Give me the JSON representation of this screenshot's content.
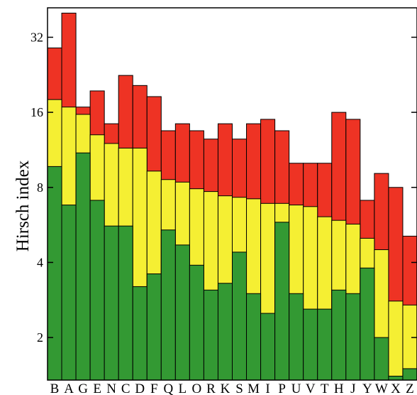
{
  "chart_data": {
    "type": "bar",
    "stacked": true,
    "ylabel": "Hirsch index",
    "xlabel": "",
    "yscale": "log2",
    "ylim": [
      1.35,
      42
    ],
    "yticks": [
      2,
      4,
      8,
      16,
      32
    ],
    "grid": false,
    "categories": [
      "B",
      "A",
      "G",
      "E",
      "N",
      "C",
      "D",
      "F",
      "Q",
      "L",
      "O",
      "R",
      "K",
      "S",
      "M",
      "I",
      "P",
      "U",
      "V",
      "T",
      "H",
      "J",
      "Y",
      "W",
      "X",
      "Z"
    ],
    "series": [
      {
        "color": "#339933",
        "values": [
          9.7,
          6.8,
          11,
          7.1,
          5.6,
          5.6,
          3.2,
          3.6,
          5.4,
          4.7,
          3.9,
          3.1,
          3.3,
          4.4,
          3.0,
          2.5,
          5.8,
          3.0,
          2.6,
          2.6,
          3.1,
          3.0,
          3.8,
          2.0,
          1.4,
          1.5
        ]
      },
      {
        "color": "#f5ef33",
        "values": [
          18,
          16.8,
          15.7,
          13,
          12,
          11.5,
          11.5,
          9.3,
          8.6,
          8.4,
          7.9,
          7.7,
          7.4,
          7.3,
          7.2,
          6.9,
          6.9,
          6.8,
          6.7,
          6.1,
          5.9,
          5.7,
          5.0,
          4.5,
          2.8,
          2.7
        ]
      },
      {
        "color": "#ee3324",
        "values": [
          29,
          40,
          16.8,
          19.5,
          14.4,
          22.5,
          20.5,
          18.5,
          13.5,
          14.4,
          13.5,
          12.5,
          14.4,
          12.5,
          14.4,
          15,
          13.5,
          10,
          10,
          10,
          16,
          15,
          7.1,
          9.1,
          8,
          5.1
        ]
      }
    ]
  }
}
